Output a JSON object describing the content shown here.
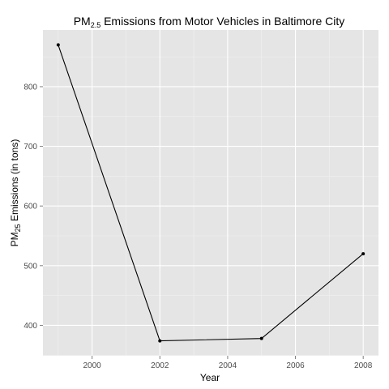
{
  "chart_data": {
    "type": "line",
    "title": {
      "prefix": "PM",
      "subscript": "2.5",
      "suffix": " Emissions from Motor Vehicles in Baltimore City"
    },
    "xlabel": "Year",
    "ylabel": {
      "prefix": "PM",
      "subscript": "25",
      "suffix": " Emissions (in tons)"
    },
    "x": [
      1999,
      2002,
      2005,
      2008
    ],
    "series": [
      {
        "values": [
          870,
          374,
          378,
          520
        ]
      }
    ],
    "xlim": [
      1998.55,
      2008.45
    ],
    "ylim": [
      349,
      895
    ],
    "xticks": [
      2000,
      2002,
      2004,
      2006,
      2008
    ],
    "xtick_labels": [
      "2000",
      "2002",
      "2004",
      "2006",
      "2008"
    ],
    "yticks": [
      400,
      500,
      600,
      700,
      800
    ],
    "ytick_labels": [
      "400",
      "500",
      "600",
      "700",
      "800"
    ],
    "grid": true,
    "legend": "none",
    "colors": {
      "panel": "#e5e5e5",
      "grid_major": "#ffffff",
      "grid_minor": "#f2f2f2",
      "line": "#000000",
      "tick_text": "#4d4d4d",
      "tick_mark": "#7f7f7f"
    }
  }
}
